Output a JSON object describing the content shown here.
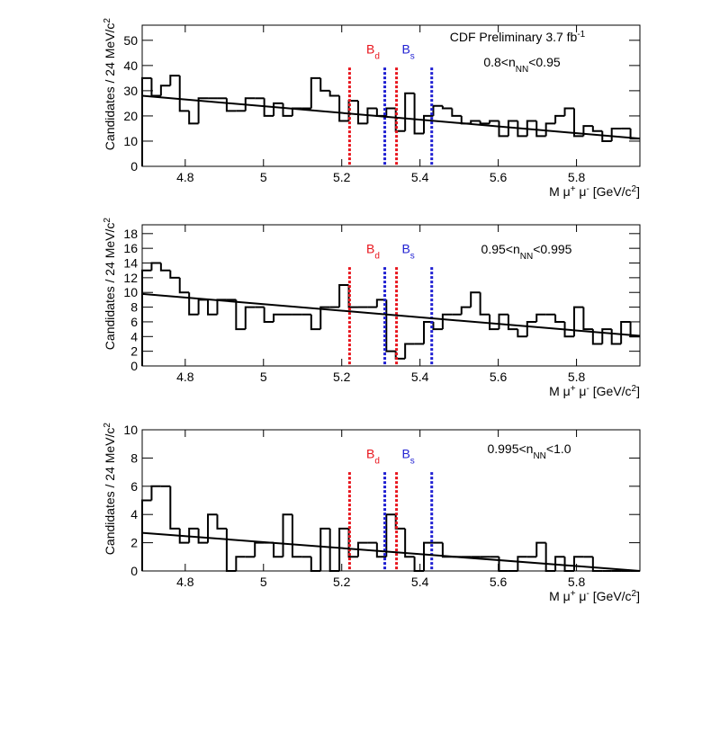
{
  "chart_data": [
    {
      "type": "histogram",
      "color": "#000000",
      "annotations": [
        [
          {
            "t": "CDF Preliminary 3.7 fb"
          },
          {
            "t": "-1",
            "pos": "sup"
          }
        ],
        [
          {
            "t": "0.8<n"
          },
          {
            "t": "NN",
            "pos": "sub"
          },
          {
            "t": "<0.95"
          }
        ]
      ],
      "y_label": [
        {
          "t": "Candidates / 24 MeV/c"
        },
        {
          "t": "2",
          "pos": "sup"
        }
      ],
      "x_label": [
        {
          "t": "M μ"
        },
        {
          "t": "+",
          "pos": "sup"
        },
        {
          "t": " μ"
        },
        {
          "t": "-",
          "pos": "sup"
        },
        {
          "t": " [GeV/c"
        },
        {
          "t": "2",
          "pos": "sup"
        },
        {
          "t": "]"
        }
      ],
      "bins": [
        4.69,
        4.714,
        4.738,
        4.762,
        4.786,
        4.81,
        4.834,
        4.858,
        4.882,
        4.906,
        4.93,
        4.954,
        4.978,
        5.002,
        5.026,
        5.05,
        5.074,
        5.098,
        5.122,
        5.146,
        5.17,
        5.194,
        5.218,
        5.242,
        5.266,
        5.29,
        5.314,
        5.338,
        5.362,
        5.386,
        5.41,
        5.434,
        5.458,
        5.482,
        5.506,
        5.53,
        5.554,
        5.578,
        5.602,
        5.626,
        5.65,
        5.674,
        5.698,
        5.722,
        5.746,
        5.77,
        5.794,
        5.818,
        5.842,
        5.866,
        5.89,
        5.914,
        5.938,
        5.962
      ],
      "values": [
        35,
        28,
        32,
        36,
        22,
        17,
        27,
        27,
        27,
        22,
        22,
        27,
        27,
        20,
        25,
        20,
        23,
        23,
        35,
        30,
        28,
        18,
        26,
        17,
        23,
        20,
        23,
        14,
        29,
        13,
        20,
        24,
        23,
        20,
        17,
        18,
        17,
        18,
        12,
        18,
        12,
        18,
        12,
        17,
        20,
        23,
        12,
        16,
        14,
        10,
        15,
        15,
        11
      ],
      "fit": {
        "x": [
          4.69,
          5.962
        ],
        "values": [
          28,
          11
        ],
        "color": "#000000"
      },
      "windows": [
        {
          "label": [
            {
              "t": "B"
            },
            {
              "t": "d",
              "pos": "sub"
            }
          ],
          "color": "#e8131b",
          "x": [
            5.22,
            5.34
          ]
        },
        {
          "label": [
            {
              "t": "B"
            },
            {
              "t": "s",
              "pos": "sub"
            }
          ],
          "color": "#1e1ed2",
          "x": [
            5.31,
            5.43
          ]
        }
      ],
      "xlim": [
        4.69,
        5.962
      ],
      "xticks": [
        4.8,
        5,
        5.2,
        5.4,
        5.6,
        5.8
      ],
      "ylim": [
        0,
        56
      ],
      "yticks": [
        0,
        10,
        20,
        30,
        40,
        50
      ]
    },
    {
      "type": "histogram",
      "color": "#000000",
      "annotations": [
        [
          {
            "t": "0.95<n"
          },
          {
            "t": "NN",
            "pos": "sub"
          },
          {
            "t": "<0.995"
          }
        ]
      ],
      "y_label": [
        {
          "t": "Candidates / 24 MeV/c"
        },
        {
          "t": "2",
          "pos": "sup"
        }
      ],
      "x_label": [
        {
          "t": "M μ"
        },
        {
          "t": "+",
          "pos": "sup"
        },
        {
          "t": " μ"
        },
        {
          "t": "-",
          "pos": "sup"
        },
        {
          "t": " [GeV/c"
        },
        {
          "t": "2",
          "pos": "sup"
        },
        {
          "t": "]"
        }
      ],
      "bins": [
        4.69,
        4.714,
        4.738,
        4.762,
        4.786,
        4.81,
        4.834,
        4.858,
        4.882,
        4.906,
        4.93,
        4.954,
        4.978,
        5.002,
        5.026,
        5.05,
        5.074,
        5.098,
        5.122,
        5.146,
        5.17,
        5.194,
        5.218,
        5.242,
        5.266,
        5.29,
        5.314,
        5.338,
        5.362,
        5.386,
        5.41,
        5.434,
        5.458,
        5.482,
        5.506,
        5.53,
        5.554,
        5.578,
        5.602,
        5.626,
        5.65,
        5.674,
        5.698,
        5.722,
        5.746,
        5.77,
        5.794,
        5.818,
        5.842,
        5.866,
        5.89,
        5.914,
        5.938,
        5.962
      ],
      "values": [
        13,
        14,
        13,
        12,
        10,
        7,
        9,
        7,
        9,
        9,
        5,
        8,
        8,
        6,
        7,
        7,
        7,
        7,
        5,
        8,
        8,
        11,
        8,
        8,
        8,
        9,
        2,
        1,
        3,
        3,
        6,
        5,
        7,
        7,
        8,
        10,
        7,
        5,
        7,
        5,
        4,
        6,
        7,
        7,
        6,
        4,
        8,
        5,
        3,
        5,
        3,
        6,
        4
      ],
      "fit": {
        "x": [
          4.69,
          5.962
        ],
        "values": [
          9.8,
          4.1
        ],
        "color": "#000000"
      },
      "windows": [
        {
          "label": [
            {
              "t": "B"
            },
            {
              "t": "d",
              "pos": "sub"
            }
          ],
          "color": "#e8131b",
          "x": [
            5.22,
            5.34
          ]
        },
        {
          "label": [
            {
              "t": "B"
            },
            {
              "t": "s",
              "pos": "sub"
            }
          ],
          "color": "#1e1ed2",
          "x": [
            5.31,
            5.43
          ]
        }
      ],
      "xlim": [
        4.69,
        5.962
      ],
      "xticks": [
        4.8,
        5,
        5.2,
        5.4,
        5.6,
        5.8
      ],
      "ylim": [
        0,
        19.2
      ],
      "yticks": [
        0,
        2,
        4,
        6,
        8,
        10,
        12,
        14,
        16,
        18
      ]
    },
    {
      "type": "histogram",
      "color": "#000000",
      "annotations": [
        [
          {
            "t": "0.995<n"
          },
          {
            "t": "NN",
            "pos": "sub"
          },
          {
            "t": "<1.0"
          }
        ]
      ],
      "y_label": [
        {
          "t": "Candidates / 24 MeV/c"
        },
        {
          "t": "2",
          "pos": "sup"
        }
      ],
      "x_label": [
        {
          "t": "M μ"
        },
        {
          "t": "+",
          "pos": "sup"
        },
        {
          "t": " μ"
        },
        {
          "t": "-",
          "pos": "sup"
        },
        {
          "t": " [GeV/c"
        },
        {
          "t": "2",
          "pos": "sup"
        },
        {
          "t": "]"
        }
      ],
      "bins": [
        4.69,
        4.714,
        4.738,
        4.762,
        4.786,
        4.81,
        4.834,
        4.858,
        4.882,
        4.906,
        4.93,
        4.954,
        4.978,
        5.002,
        5.026,
        5.05,
        5.074,
        5.098,
        5.122,
        5.146,
        5.17,
        5.194,
        5.218,
        5.242,
        5.266,
        5.29,
        5.314,
        5.338,
        5.362,
        5.386,
        5.41,
        5.434,
        5.458,
        5.482,
        5.506,
        5.53,
        5.554,
        5.578,
        5.602,
        5.626,
        5.65,
        5.674,
        5.698,
        5.722,
        5.746,
        5.77,
        5.794,
        5.818,
        5.842,
        5.866,
        5.89,
        5.914,
        5.938,
        5.962
      ],
      "values": [
        5,
        6,
        6,
        3,
        2,
        3,
        2,
        4,
        3,
        0,
        1,
        1,
        2,
        2,
        1,
        4,
        1,
        1,
        0,
        3,
        0,
        3,
        1,
        2,
        2,
        1,
        4,
        3,
        1,
        0,
        2,
        2,
        1,
        1,
        1,
        1,
        1,
        1,
        0,
        0,
        1,
        1,
        2,
        0,
        1,
        0,
        1,
        1,
        0,
        0,
        0,
        0,
        0
      ],
      "fit": {
        "x": [
          4.69,
          5.962
        ],
        "values": [
          2.7,
          0
        ],
        "color": "#000000"
      },
      "windows": [
        {
          "label": [
            {
              "t": "B"
            },
            {
              "t": "d",
              "pos": "sub"
            }
          ],
          "color": "#e8131b",
          "x": [
            5.22,
            5.34
          ]
        },
        {
          "label": [
            {
              "t": "B"
            },
            {
              "t": "s",
              "pos": "sub"
            }
          ],
          "color": "#1e1ed2",
          "x": [
            5.31,
            5.43
          ]
        }
      ],
      "xlim": [
        4.69,
        5.962
      ],
      "xticks": [
        4.8,
        5,
        5.2,
        5.4,
        5.6,
        5.8
      ],
      "ylim": [
        0,
        10
      ],
      "yticks": [
        0,
        2,
        4,
        6,
        8,
        10
      ]
    }
  ]
}
